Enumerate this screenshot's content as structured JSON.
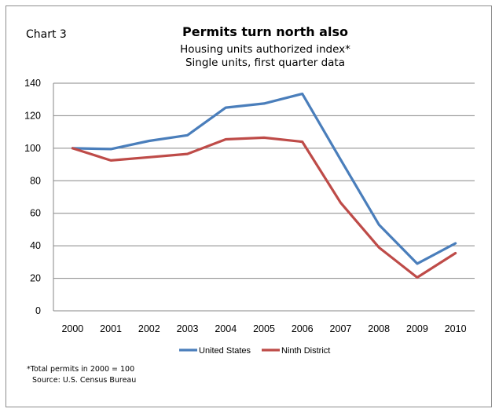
{
  "chart_label": "Chart 3",
  "title": "Permits turn north also",
  "subtitle_1": "Housing units authorized index*",
  "subtitle_2": "Single units, first quarter data",
  "footnote_1": "*Total permits in 2000 = 100",
  "footnote_2": "Source: U.S. Census Bureau",
  "chart_data": {
    "type": "line",
    "title": "Permits turn north also",
    "categories": [
      "2000",
      "2001",
      "2002",
      "2003",
      "2004",
      "2005",
      "2006",
      "2007",
      "2008",
      "2009",
      "2010"
    ],
    "series": [
      {
        "name": "United States",
        "color": "#4a7ebb",
        "values": [
          100,
          99.5,
          104.5,
          108,
          125,
          127.5,
          133.5,
          93,
          53,
          29,
          41.5
        ]
      },
      {
        "name": "Ninth District",
        "color": "#be4b48",
        "values": [
          100,
          92.5,
          94.5,
          96.5,
          105.5,
          106.5,
          104,
          66.5,
          39,
          20.5,
          35.5
        ]
      }
    ],
    "ylim": [
      0,
      140
    ],
    "yticks": [
      0,
      20,
      40,
      60,
      80,
      100,
      120,
      140
    ],
    "grid": true,
    "legend_position": "bottom"
  }
}
